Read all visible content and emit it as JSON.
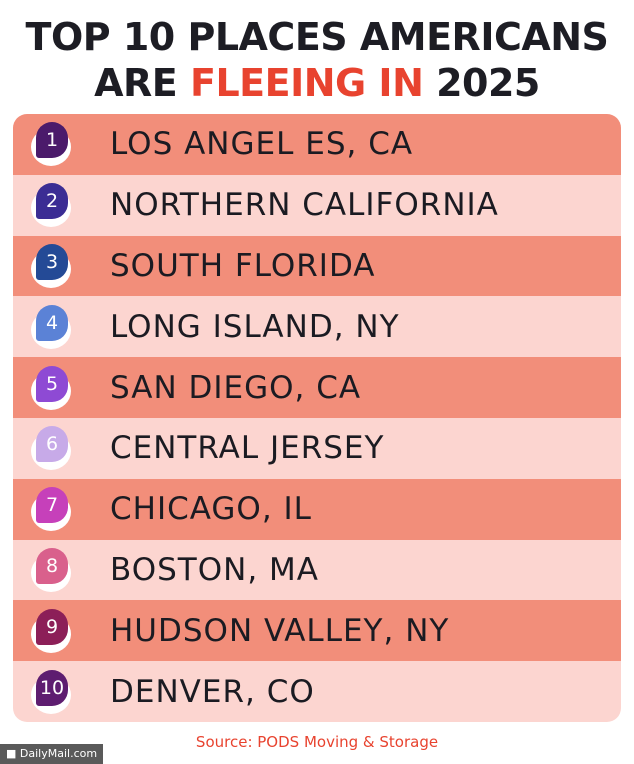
{
  "title": {
    "line1": "TOP 10 PLACES AMERICANS",
    "line2_prefix": "ARE ",
    "line2_highlight": "FLEEING IN",
    "line2_suffix": " 2025",
    "accent_color": "#e8432f"
  },
  "chart_data": {
    "type": "table",
    "title": "TOP 10 PLACES AMERICANS ARE FLEEING IN 2025",
    "rows": [
      {
        "rank": "1",
        "place": "LOS ANGEL ES, CA",
        "badge_color": "#4b1b6b"
      },
      {
        "rank": "2",
        "place": "NORTHERN CALIFORNIA",
        "badge_color": "#3b2d94"
      },
      {
        "rank": "3",
        "place": "SOUTH FLORIDA",
        "badge_color": "#244a96"
      },
      {
        "rank": "4",
        "place": "LONG ISLAND, NY",
        "badge_color": "#5b82d6"
      },
      {
        "rank": "5",
        "place": "SAN DIEGO, CA",
        "badge_color": "#8e4ad4"
      },
      {
        "rank": "6",
        "place": "CENTRAL JERSEY",
        "badge_color": "#c7aae8"
      },
      {
        "rank": "7",
        "place": "CHICAGO, IL",
        "badge_color": "#c640ba"
      },
      {
        "rank": "8",
        "place": "BOSTON, MA",
        "badge_color": "#d9608c"
      },
      {
        "rank": "9",
        "place": "HUDSON VALLEY, NY",
        "badge_color": "#8c1f58"
      },
      {
        "rank": "10",
        "place": "DENVER, CO",
        "badge_color": "#5e1d70"
      }
    ],
    "row_colors": [
      "#f28e7a",
      "#fcd5d0"
    ]
  },
  "source": "Source: PODS Moving & Storage",
  "brand": "■ DailyMail.com"
}
